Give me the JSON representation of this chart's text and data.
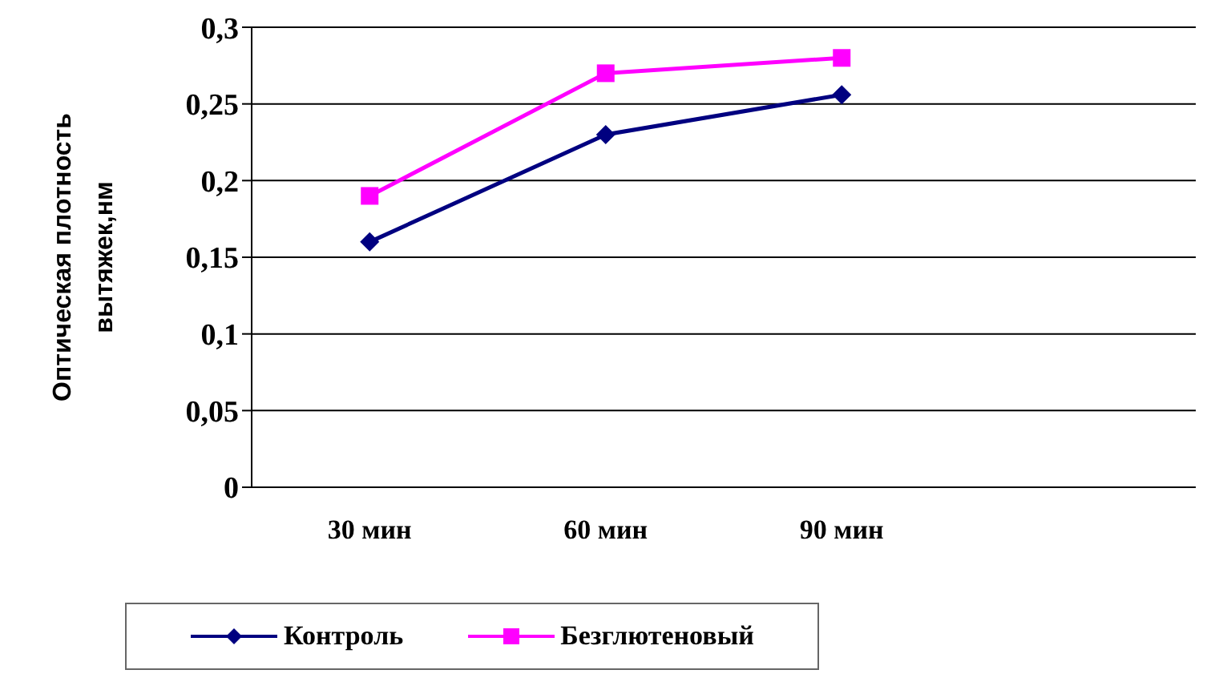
{
  "chart_data": {
    "type": "line",
    "ylabel": "Оптическая плотность вытяжек,нм",
    "categories": [
      "30 мин",
      "60 мин",
      "90 мин",
      null
    ],
    "series": [
      {
        "name": "Контроль",
        "color": "#000080",
        "marker": "diamond",
        "values": [
          0.16,
          0.23,
          0.256,
          null
        ]
      },
      {
        "name": "Безглютеновый",
        "color": "#ff00ff",
        "marker": "square",
        "values": [
          0.19,
          0.27,
          0.28,
          null
        ]
      }
    ],
    "ylim": [
      0,
      0.3
    ],
    "yticks": [
      {
        "value": 0,
        "label": "0"
      },
      {
        "value": 0.05,
        "label": "0,05"
      },
      {
        "value": 0.1,
        "label": "0,1"
      },
      {
        "value": 0.15,
        "label": "0,15"
      },
      {
        "value": 0.2,
        "label": "0,2"
      },
      {
        "value": 0.25,
        "label": "0,25"
      },
      {
        "value": 0.3,
        "label": "0,3"
      }
    ],
    "grid": "y",
    "legend": "bottom"
  }
}
